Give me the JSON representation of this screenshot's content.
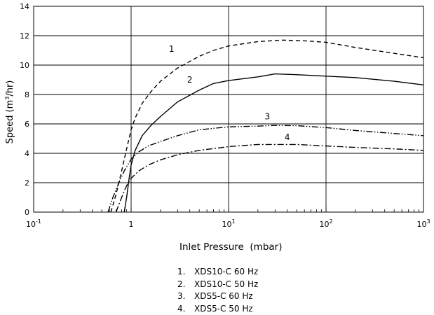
{
  "chart_data": {
    "type": "line",
    "xlabel": "Inlet Pressure  (mbar)",
    "ylabel": "Speed  (m3/hr)",
    "ylabel_parts": [
      "Speed  (m",
      "3",
      "/hr)"
    ],
    "xscale": "log",
    "xlim": [
      0.1,
      1000
    ],
    "ylim": [
      0,
      14
    ],
    "grid": true,
    "x_ticks": [
      {
        "base": "10",
        "exp": "-1",
        "value": 0.1
      },
      {
        "base": "1",
        "exp": "",
        "value": 1
      },
      {
        "base": "10",
        "exp": "1",
        "value": 10
      },
      {
        "base": "10",
        "exp": "2",
        "value": 100
      },
      {
        "base": "10",
        "exp": "3",
        "value": 1000
      }
    ],
    "y_ticks": [
      "0",
      "2",
      "4",
      "6",
      "8",
      "10",
      "12",
      "14"
    ],
    "series": [
      {
        "label": "1",
        "dash": "dashed",
        "x": [
          0.62,
          0.7,
          0.8,
          0.9,
          1.0,
          1.1,
          1.3,
          1.6,
          2.0,
          3.0,
          5.0,
          7.0,
          10,
          20,
          35,
          60,
          100,
          200,
          500,
          1000
        ],
        "y": [
          0,
          1.2,
          2.8,
          4.3,
          5.6,
          6.4,
          7.4,
          8.2,
          8.9,
          9.8,
          10.6,
          11.0,
          11.3,
          11.6,
          11.7,
          11.65,
          11.55,
          11.2,
          10.8,
          10.5
        ]
      },
      {
        "label": "2",
        "dash": "solid",
        "x": [
          0.85,
          0.9,
          0.95,
          1.0,
          1.1,
          1.3,
          1.6,
          2.0,
          3.0,
          5.0,
          7.0,
          10,
          20,
          30,
          50,
          100,
          200,
          500,
          1000
        ],
        "y": [
          0,
          1.0,
          2.2,
          3.2,
          4.2,
          5.2,
          5.9,
          6.5,
          7.5,
          8.3,
          8.75,
          8.95,
          9.2,
          9.4,
          9.35,
          9.25,
          9.15,
          8.9,
          8.65
        ]
      },
      {
        "label": "3",
        "dash": "dash-dot-dot",
        "x": [
          0.58,
          0.65,
          0.75,
          0.85,
          1.0,
          1.2,
          1.5,
          2.0,
          3.0,
          5.0,
          10,
          20,
          30,
          50,
          100,
          200,
          500,
          1000
        ],
        "y": [
          0,
          1.0,
          2.0,
          2.8,
          3.6,
          4.1,
          4.5,
          4.8,
          5.2,
          5.6,
          5.8,
          5.85,
          5.9,
          5.88,
          5.75,
          5.55,
          5.35,
          5.2
        ]
      },
      {
        "label": "4",
        "dash": "dash-dot",
        "x": [
          0.7,
          0.8,
          0.9,
          1.0,
          1.2,
          1.5,
          2.0,
          3.0,
          5.0,
          10,
          20,
          30,
          50,
          100,
          200,
          500,
          1000
        ],
        "y": [
          0,
          1.0,
          1.8,
          2.3,
          2.8,
          3.2,
          3.55,
          3.9,
          4.2,
          4.45,
          4.6,
          4.6,
          4.6,
          4.5,
          4.4,
          4.3,
          4.2
        ]
      }
    ],
    "curve_labels": [
      {
        "text": "1",
        "x": 2.6,
        "y": 10.9
      },
      {
        "text": "2",
        "x": 4.0,
        "y": 8.8
      },
      {
        "text": "3",
        "x": 25,
        "y": 6.3
      },
      {
        "text": "4",
        "x": 40,
        "y": 4.9
      }
    ],
    "legend": [
      {
        "num": "1.",
        "text": "XDS10-C 60 Hz"
      },
      {
        "num": "2.",
        "text": "XDS10-C 50 Hz"
      },
      {
        "num": "3.",
        "text": "XDS5-C 60 Hz"
      },
      {
        "num": "4.",
        "text": "XDS5-C 50 Hz"
      }
    ]
  }
}
